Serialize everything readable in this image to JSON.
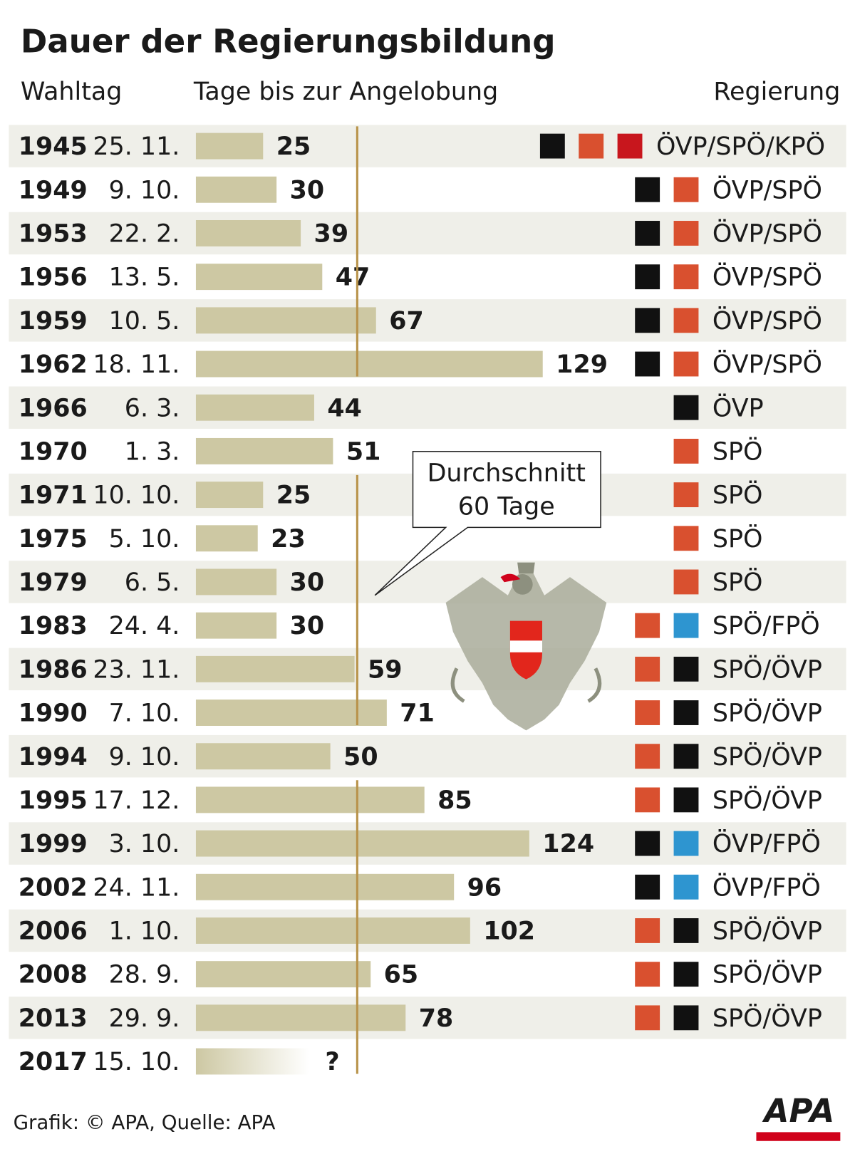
{
  "chart_data": {
    "type": "bar",
    "orientation": "horizontal",
    "title": "Dauer der Regierungsbildung",
    "column_headers": [
      "Wahltag",
      "Tage bis zur Angelobung",
      "Regierung"
    ],
    "categories": [
      "1945",
      "1949",
      "1953",
      "1956",
      "1959",
      "1962",
      "1966",
      "1970",
      "1971",
      "1975",
      "1979",
      "1983",
      "1986",
      "1990",
      "1994",
      "1995",
      "1999",
      "2002",
      "2006",
      "2008",
      "2013",
      "2017"
    ],
    "dates": [
      "25. 11.",
      "9. 10.",
      "22. 2.",
      "13. 5.",
      "10. 5.",
      "18. 11.",
      "6. 3.",
      "1. 3.",
      "10. 10.",
      "5. 10.",
      "6. 5.",
      "24. 4.",
      "23. 11.",
      "7. 10.",
      "9. 10.",
      "17. 12.",
      "3. 10.",
      "24. 11.",
      "1. 10.",
      "28. 9.",
      "29. 9.",
      "15. 10."
    ],
    "values": [
      25,
      30,
      39,
      47,
      67,
      129,
      44,
      51,
      25,
      23,
      30,
      30,
      59,
      71,
      50,
      85,
      124,
      96,
      102,
      65,
      78,
      null
    ],
    "value_labels": [
      "25",
      "30",
      "39",
      "47",
      "67",
      "129",
      "44",
      "51",
      "25",
      "23",
      "30",
      "30",
      "59",
      "71",
      "50",
      "85",
      "124",
      "96",
      "102",
      "65",
      "78",
      "?"
    ],
    "color": "#cdc8a3",
    "government": [
      "ÖVP/SPÖ/KPÖ",
      "ÖVP/SPÖ",
      "ÖVP/SPÖ",
      "ÖVP/SPÖ",
      "ÖVP/SPÖ",
      "ÖVP/SPÖ",
      "ÖVP",
      "SPÖ",
      "SPÖ",
      "SPÖ",
      "SPÖ",
      "SPÖ/FPÖ",
      "SPÖ/ÖVP",
      "SPÖ/ÖVP",
      "SPÖ/ÖVP",
      "SPÖ/ÖVP",
      "ÖVP/FPÖ",
      "ÖVP/FPÖ",
      "SPÖ/ÖVP",
      "SPÖ/ÖVP",
      "SPÖ/ÖVP",
      null
    ],
    "coalition_colors": [
      [
        "#111111",
        "#d9502f",
        "#c8161d"
      ],
      [
        "#111111",
        "#d9502f"
      ],
      [
        "#111111",
        "#d9502f"
      ],
      [
        "#111111",
        "#d9502f"
      ],
      [
        "#111111",
        "#d9502f"
      ],
      [
        "#111111",
        "#d9502f"
      ],
      [
        "#111111"
      ],
      [
        "#d9502f"
      ],
      [
        "#d9502f"
      ],
      [
        "#d9502f"
      ],
      [
        "#d9502f"
      ],
      [
        "#d9502f",
        "#2e95d0"
      ],
      [
        "#d9502f",
        "#111111"
      ],
      [
        "#d9502f",
        "#111111"
      ],
      [
        "#d9502f",
        "#111111"
      ],
      [
        "#d9502f",
        "#111111"
      ],
      [
        "#111111",
        "#2e95d0"
      ],
      [
        "#111111",
        "#2e95d0"
      ],
      [
        "#d9502f",
        "#111111"
      ],
      [
        "#d9502f",
        "#111111"
      ],
      [
        "#d9502f",
        "#111111"
      ],
      []
    ],
    "reference": {
      "value": 60,
      "label": [
        "Durchschnitt",
        "60 Tage"
      ],
      "color": "#b8934a"
    },
    "footer": "Grafik: © APA, Quelle: APA",
    "logo": "APA"
  }
}
